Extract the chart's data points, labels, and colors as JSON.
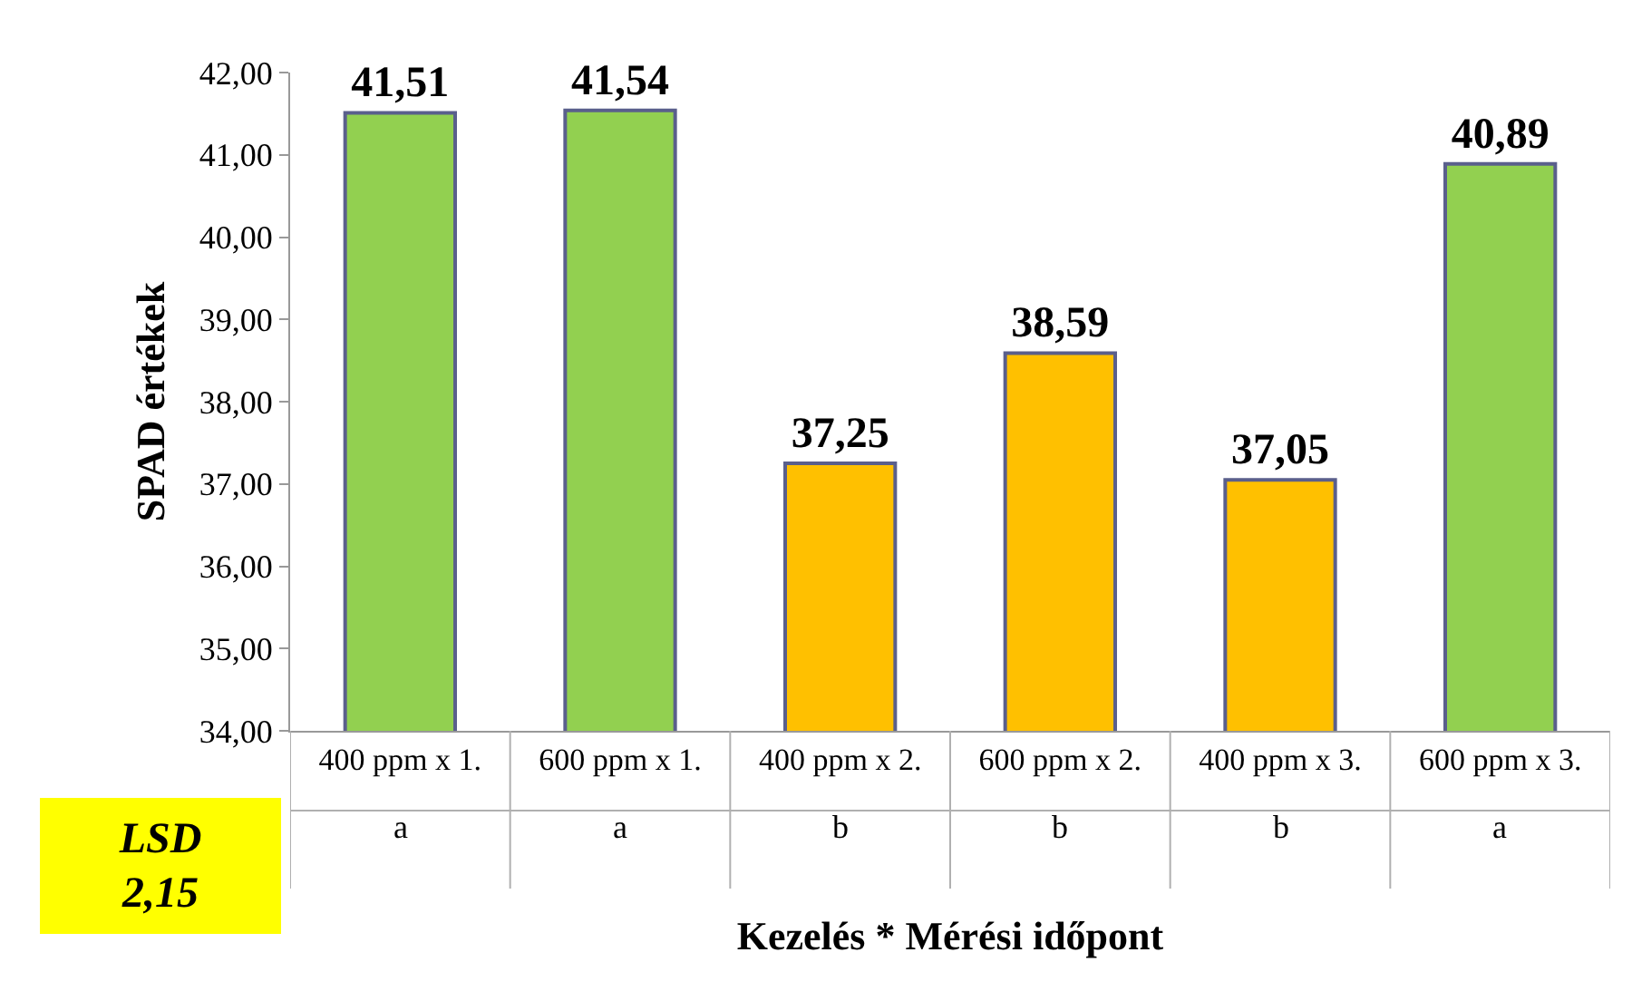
{
  "chart_data": {
    "type": "bar",
    "ylabel": "SPAD értékek",
    "xlabel": "Kezelés * Mérési időpont",
    "categories": [
      "400 ppm x 1.",
      "600 ppm x 1.",
      "400 ppm x 2.",
      "600 ppm x 2.",
      "400 ppm x 3.",
      "600 ppm x 3."
    ],
    "values": [
      41.51,
      41.54,
      37.25,
      38.59,
      37.05,
      40.89
    ],
    "colors": [
      "#92d050",
      "#92d050",
      "#ffc000",
      "#ffc000",
      "#ffc000",
      "#92d050"
    ],
    "value_labels": [
      "41,51",
      "41,54",
      "37,25",
      "38,59",
      "37,05",
      "40,89"
    ],
    "ylim": [
      34,
      42
    ],
    "yticks": [
      {
        "value": 34,
        "label": "34,00"
      },
      {
        "value": 35,
        "label": "35,00"
      },
      {
        "value": 36,
        "label": "36,00"
      },
      {
        "value": 37,
        "label": "37,00"
      },
      {
        "value": 38,
        "label": "38,00"
      },
      {
        "value": 39,
        "label": "39,00"
      },
      {
        "value": 40,
        "label": "40,00"
      },
      {
        "value": 41,
        "label": "41,00"
      },
      {
        "value": 42,
        "label": "42,00"
      }
    ],
    "grid": false,
    "annotations": [
      "a",
      "a",
      "b",
      "b",
      "b",
      "a",
      "LSD 2,15"
    ]
  }
}
